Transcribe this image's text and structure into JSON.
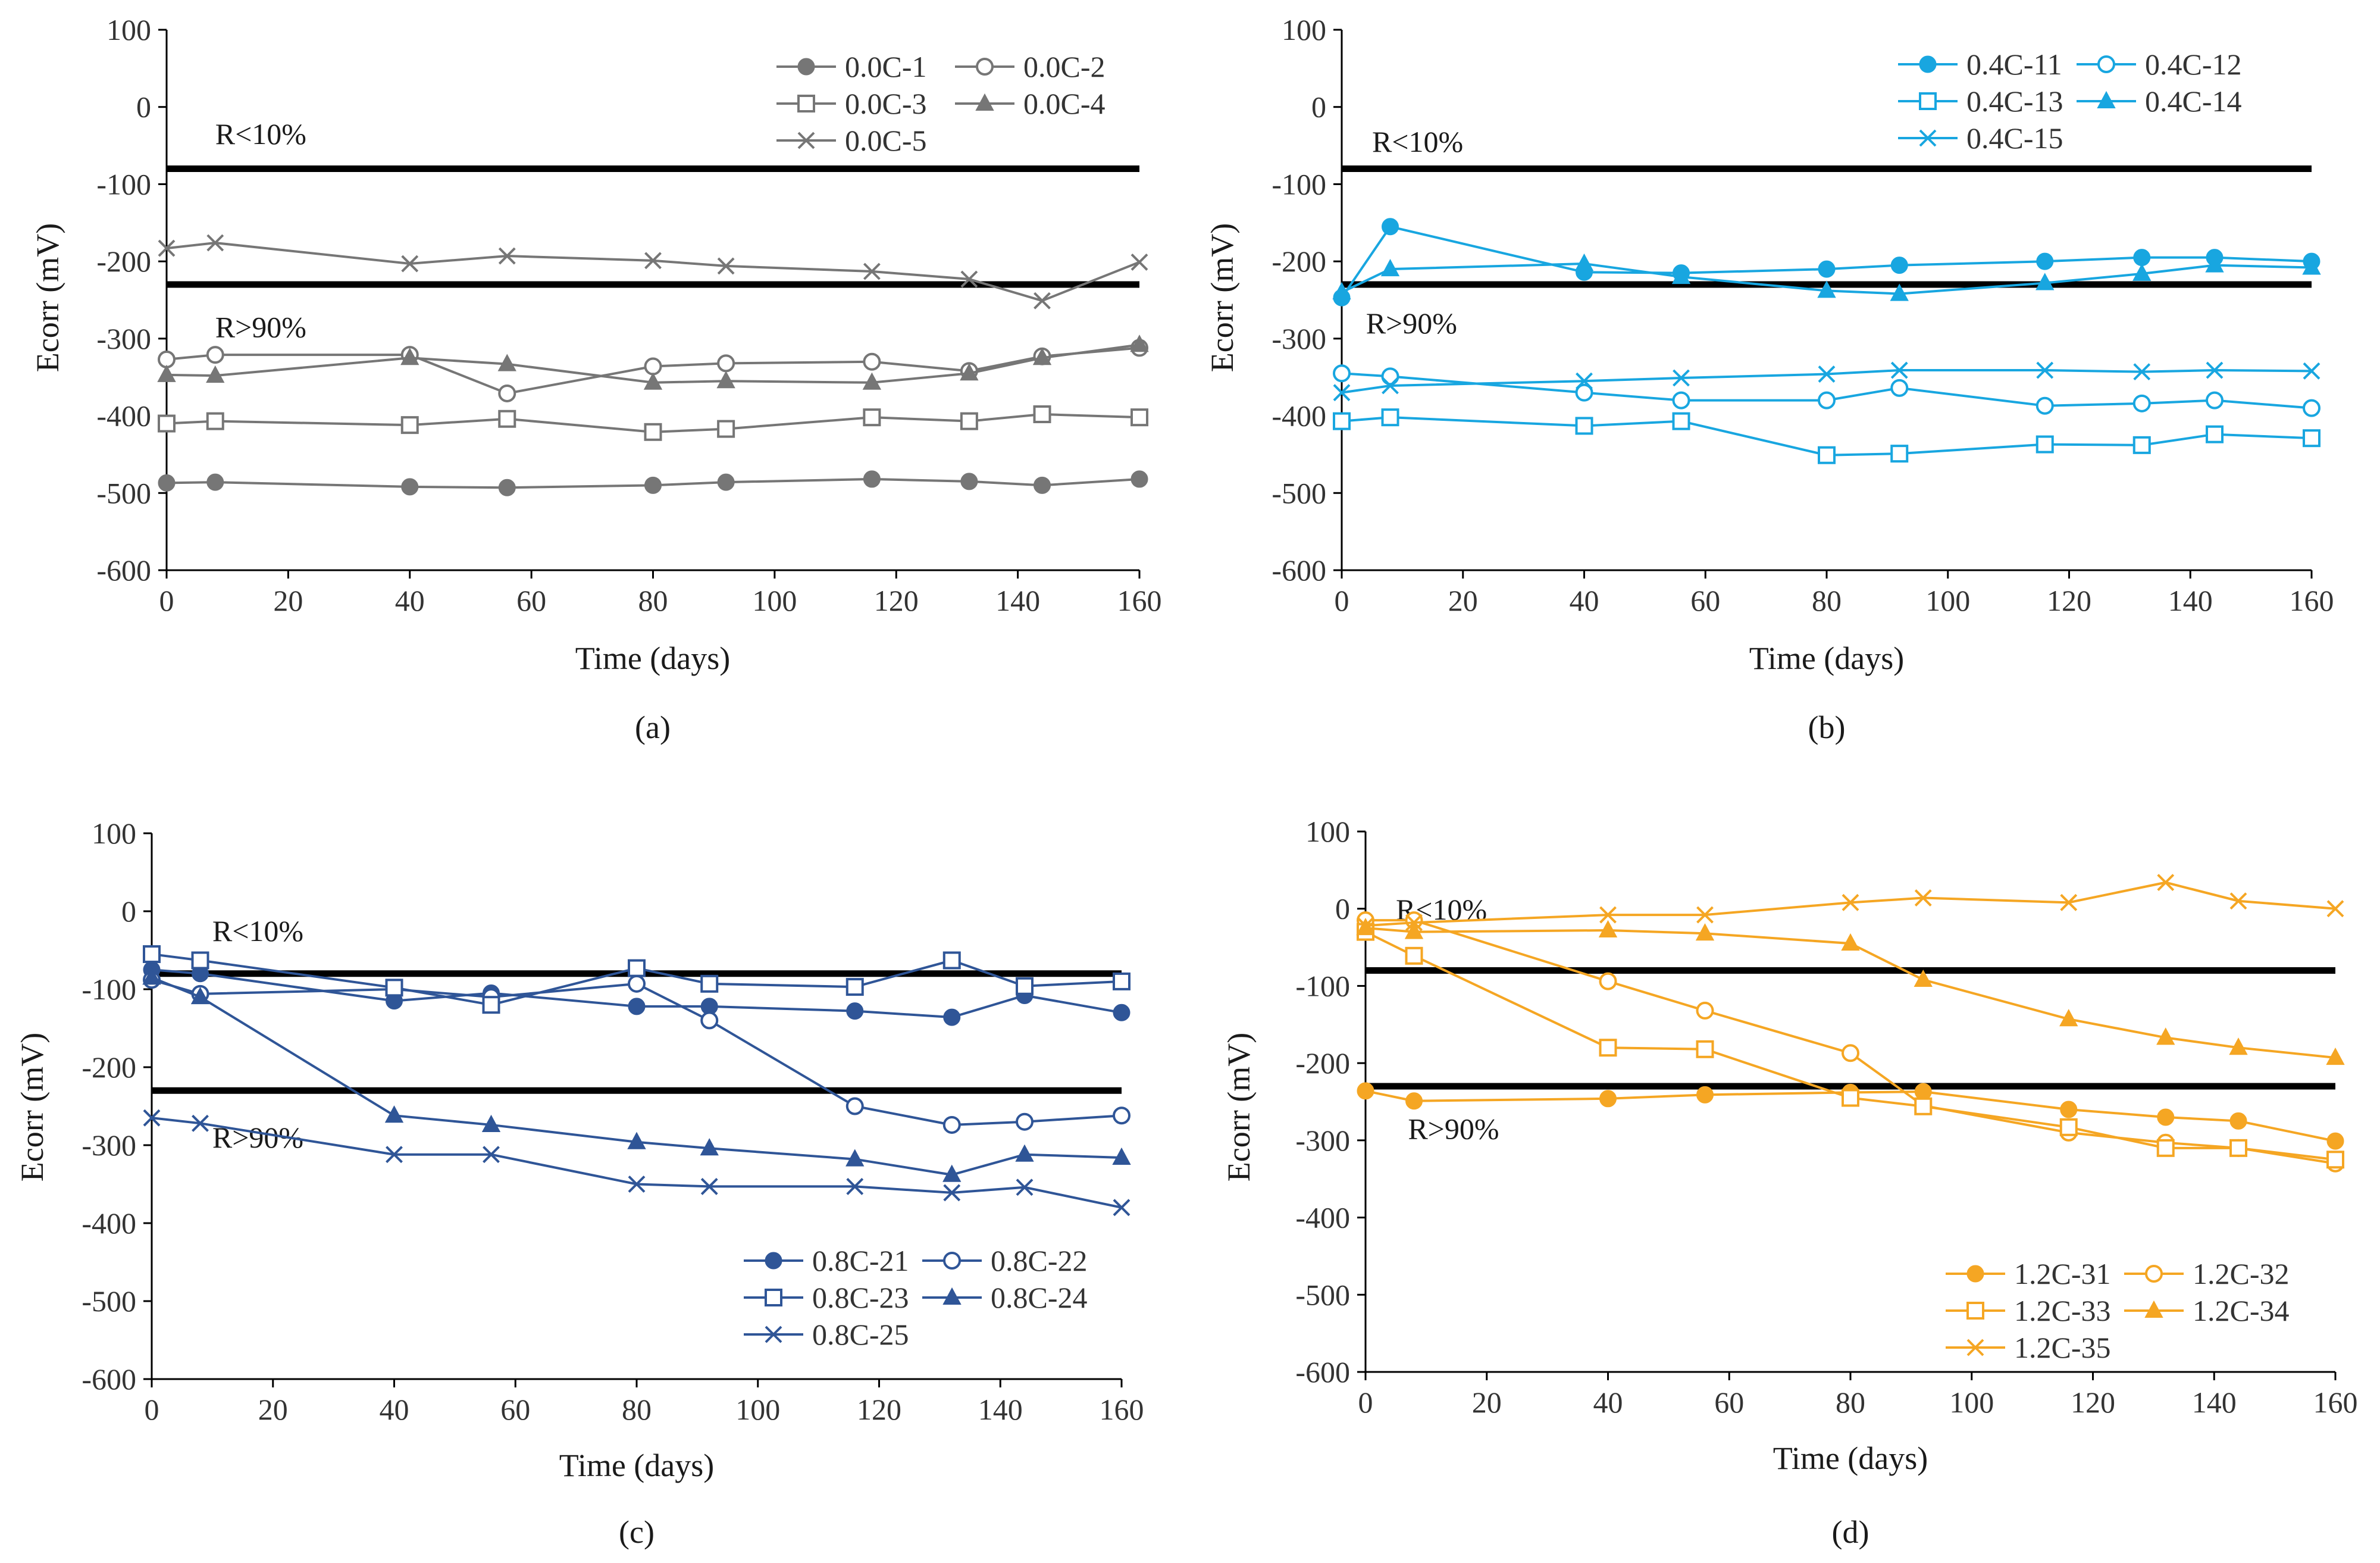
{
  "figure_name": "ecorr-four-panel-figure",
  "chart_data": [
    {
      "id": "a",
      "type": "line",
      "caption": "(a)",
      "xlabel": "Time (days)",
      "ylabel": "Ecorr (mV)",
      "xlim": [
        0,
        160
      ],
      "ylim": [
        -600,
        100
      ],
      "xticks": [
        0,
        20,
        40,
        60,
        80,
        100,
        120,
        140,
        160
      ],
      "yticks": [
        100,
        0,
        -100,
        -200,
        -300,
        -400,
        -500,
        -600
      ],
      "color": "#767676",
      "legend_position": "top-right",
      "reference_lines": [
        {
          "y": -80,
          "label": "R<10%",
          "label_at": [
            8,
            -35
          ]
        },
        {
          "y": -230,
          "label": "R>90%",
          "label_at": [
            8,
            -285
          ]
        }
      ],
      "series": [
        {
          "name": "0.0C-1",
          "marker": "filled-circle",
          "x": [
            0,
            8,
            40,
            56,
            80,
            92,
            116,
            132,
            144,
            160
          ],
          "y": [
            -487,
            -486,
            -492,
            -493,
            -490,
            -486,
            -482,
            -485,
            -490,
            -482
          ]
        },
        {
          "name": "0.0C-2",
          "marker": "open-circle",
          "x": [
            0,
            8,
            40,
            56,
            80,
            92,
            116,
            132,
            144,
            160
          ],
          "y": [
            -327,
            -321,
            -321,
            -371,
            -336,
            -332,
            -330,
            -342,
            -323,
            -312
          ]
        },
        {
          "name": "0.0C-3",
          "marker": "open-square",
          "x": [
            0,
            8,
            40,
            56,
            80,
            92,
            116,
            132,
            144,
            160
          ],
          "y": [
            -410,
            -407,
            -412,
            -404,
            -421,
            -417,
            -402,
            -407,
            -398,
            -402
          ]
        },
        {
          "name": "0.0C-4",
          "marker": "filled-triangle",
          "x": [
            0,
            8,
            40,
            56,
            80,
            92,
            116,
            132,
            144,
            160
          ],
          "y": [
            -347,
            -348,
            -325,
            -333,
            -357,
            -355,
            -357,
            -345,
            -325,
            -308
          ]
        },
        {
          "name": "0.0C-5",
          "marker": "cross",
          "x": [
            0,
            8,
            40,
            56,
            80,
            92,
            116,
            132,
            144,
            160
          ],
          "y": [
            -183,
            -176,
            -203,
            -193,
            -199,
            -206,
            -213,
            -223,
            -251,
            -201
          ]
        }
      ]
    },
    {
      "id": "b",
      "type": "line",
      "caption": "(b)",
      "xlabel": "Time (days)",
      "ylabel": "Ecorr (mV)",
      "xlim": [
        0,
        160
      ],
      "ylim": [
        -600,
        100
      ],
      "xticks": [
        0,
        20,
        40,
        60,
        80,
        100,
        120,
        140,
        160
      ],
      "yticks": [
        100,
        0,
        -100,
        -200,
        -300,
        -400,
        -500,
        -600
      ],
      "color": "#18a6e0",
      "legend_position": "top-right",
      "reference_lines": [
        {
          "y": -80,
          "label": "R<10%",
          "label_at": [
            5,
            -45
          ]
        },
        {
          "y": -230,
          "label": "R>90%",
          "label_at": [
            4,
            -280
          ]
        }
      ],
      "series": [
        {
          "name": "0.4C-11",
          "marker": "filled-circle",
          "x": [
            0,
            8,
            40,
            56,
            80,
            92,
            116,
            132,
            144,
            160
          ],
          "y": [
            -247,
            -155,
            -214,
            -215,
            -210,
            -205,
            -200,
            -195,
            -195,
            -200
          ]
        },
        {
          "name": "0.4C-12",
          "marker": "open-circle",
          "x": [
            0,
            8,
            40,
            56,
            80,
            92,
            116,
            132,
            144,
            160
          ],
          "y": [
            -345,
            -349,
            -370,
            -380,
            -380,
            -364,
            -387,
            -384,
            -380,
            -390
          ]
        },
        {
          "name": "0.4C-13",
          "marker": "open-square",
          "x": [
            0,
            8,
            40,
            56,
            80,
            92,
            116,
            132,
            144,
            160
          ],
          "y": [
            -407,
            -402,
            -413,
            -407,
            -451,
            -449,
            -437,
            -438,
            -424,
            -429
          ]
        },
        {
          "name": "0.4C-14",
          "marker": "filled-triangle",
          "x": [
            0,
            8,
            40,
            56,
            80,
            92,
            116,
            132,
            144,
            160
          ],
          "y": [
            -240,
            -210,
            -203,
            -220,
            -238,
            -242,
            -228,
            -216,
            -205,
            -208
          ]
        },
        {
          "name": "0.4C-15",
          "marker": "cross",
          "x": [
            0,
            8,
            40,
            56,
            80,
            92,
            116,
            132,
            144,
            160
          ],
          "y": [
            -370,
            -361,
            -355,
            -351,
            -346,
            -341,
            -341,
            -343,
            -341,
            -342
          ]
        }
      ]
    },
    {
      "id": "c",
      "type": "line",
      "caption": "(c)",
      "xlabel": "Time (days)",
      "ylabel": "Ecorr (mV)",
      "xlim": [
        0,
        160
      ],
      "ylim": [
        -600,
        100
      ],
      "xticks": [
        0,
        20,
        40,
        60,
        80,
        100,
        120,
        140,
        160
      ],
      "yticks": [
        100,
        0,
        -100,
        -200,
        -300,
        -400,
        -500,
        -600
      ],
      "color": "#2f5597",
      "legend_position": "bottom-right",
      "reference_lines": [
        {
          "y": -80,
          "label": "R<10%",
          "label_at": [
            10,
            -25
          ]
        },
        {
          "y": -230,
          "label": "R>90%",
          "label_at": [
            10,
            -290
          ]
        }
      ],
      "series": [
        {
          "name": "0.8C-21",
          "marker": "filled-circle",
          "x": [
            0,
            8,
            40,
            56,
            80,
            92,
            116,
            132,
            144,
            160
          ],
          "y": [
            -75,
            -80,
            -115,
            -105,
            -122,
            -122,
            -128,
            -136,
            -108,
            -130
          ]
        },
        {
          "name": "0.8C-22",
          "marker": "open-circle",
          "x": [
            0,
            8,
            40,
            56,
            80,
            92,
            116,
            132,
            144,
            160
          ],
          "y": [
            -88,
            -106,
            -100,
            -110,
            -93,
            -140,
            -250,
            -274,
            -270,
            -262
          ]
        },
        {
          "name": "0.8C-23",
          "marker": "open-square",
          "x": [
            0,
            8,
            40,
            56,
            80,
            92,
            116,
            132,
            144,
            160
          ],
          "y": [
            -55,
            -63,
            -98,
            -120,
            -73,
            -93,
            -97,
            -63,
            -96,
            -90
          ]
        },
        {
          "name": "0.8C-24",
          "marker": "filled-triangle",
          "x": [
            0,
            8,
            40,
            56,
            80,
            92,
            116,
            132,
            144,
            160
          ],
          "y": [
            -85,
            -110,
            -262,
            -274,
            -296,
            -304,
            -318,
            -338,
            -312,
            -316
          ]
        },
        {
          "name": "0.8C-25",
          "marker": "cross",
          "x": [
            0,
            8,
            40,
            56,
            80,
            92,
            116,
            132,
            144,
            160
          ],
          "y": [
            -265,
            -272,
            -312,
            -312,
            -350,
            -353,
            -353,
            -361,
            -354,
            -380
          ]
        }
      ]
    },
    {
      "id": "d",
      "type": "line",
      "caption": "(d)",
      "xlabel": "Time (days)",
      "ylabel": "Ecorr (mV)",
      "xlim": [
        0,
        160
      ],
      "ylim": [
        -600,
        100
      ],
      "xticks": [
        0,
        20,
        40,
        60,
        80,
        100,
        120,
        140,
        160
      ],
      "yticks": [
        100,
        0,
        -100,
        -200,
        -300,
        -400,
        -500,
        -600
      ],
      "color": "#f5a623",
      "legend_position": "bottom-right",
      "reference_lines": [
        {
          "y": -80,
          "label": "R<10%",
          "label_at": [
            5,
            -1
          ]
        },
        {
          "y": -230,
          "label": "R>90%",
          "label_at": [
            7,
            -285
          ]
        }
      ],
      "series": [
        {
          "name": "1.2C-31",
          "marker": "filled-circle",
          "x": [
            0,
            8,
            40,
            56,
            80,
            92,
            116,
            132,
            144,
            160
          ],
          "y": [
            -236,
            -249,
            -246,
            -241,
            -238,
            -237,
            -260,
            -270,
            -275,
            -301
          ]
        },
        {
          "name": "1.2C-32",
          "marker": "open-circle",
          "x": [
            0,
            8,
            40,
            56,
            80,
            92,
            116,
            132,
            144,
            160
          ],
          "y": [
            -15,
            -15,
            -94,
            -132,
            -187,
            -255,
            -290,
            -303,
            -310,
            -330
          ]
        },
        {
          "name": "1.2C-33",
          "marker": "open-square",
          "x": [
            0,
            8,
            40,
            56,
            80,
            92,
            116,
            132,
            144,
            160
          ],
          "y": [
            -30,
            -61,
            -180,
            -182,
            -245,
            -256,
            -283,
            -310,
            -310,
            -325
          ]
        },
        {
          "name": "1.2C-34",
          "marker": "filled-triangle",
          "x": [
            0,
            8,
            40,
            56,
            80,
            92,
            116,
            132,
            144,
            160
          ],
          "y": [
            -25,
            -30,
            -28,
            -32,
            -45,
            -92,
            -143,
            -167,
            -180,
            -193
          ]
        },
        {
          "name": "1.2C-35",
          "marker": "cross",
          "x": [
            0,
            8,
            40,
            56,
            80,
            92,
            116,
            132,
            144,
            160
          ],
          "y": [
            -22,
            -18,
            -8,
            -8,
            8,
            14,
            8,
            34,
            10,
            0
          ]
        }
      ]
    }
  ]
}
